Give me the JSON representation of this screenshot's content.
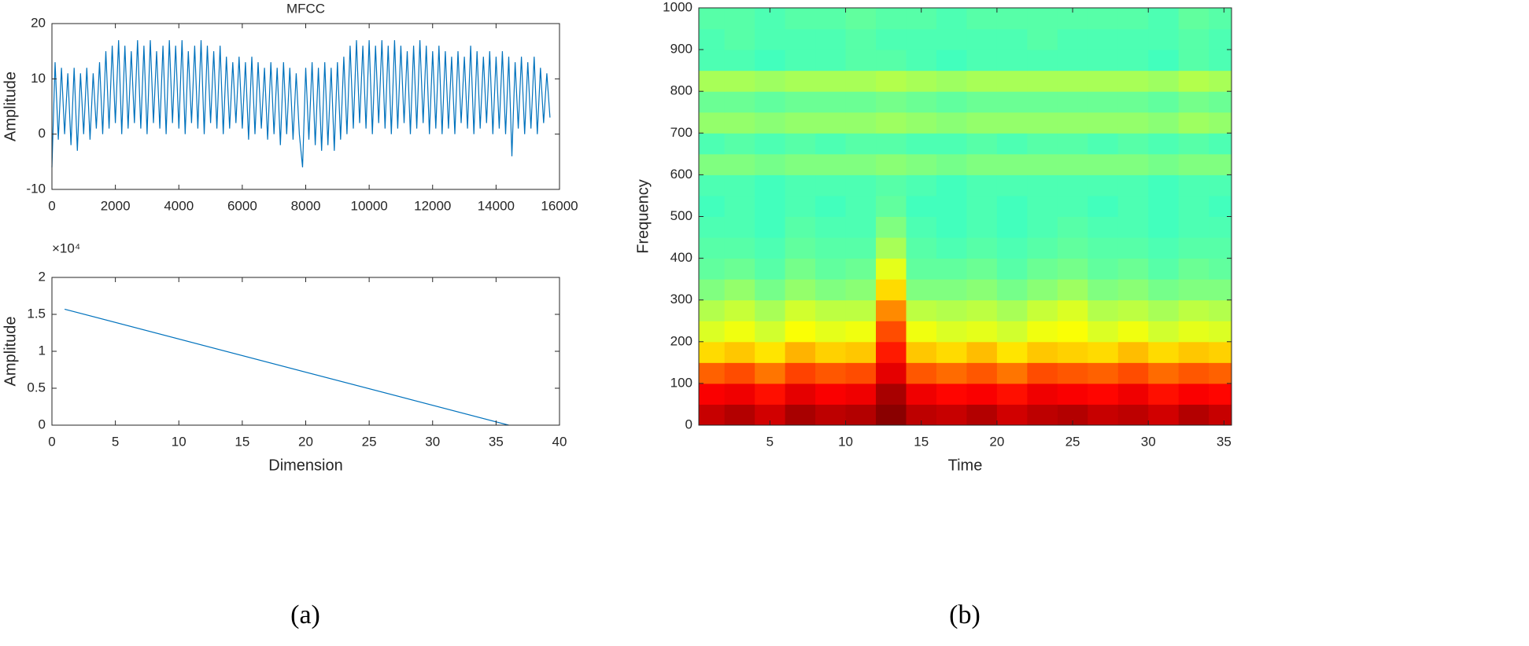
{
  "chart_data": [
    {
      "type": "line",
      "title": "MFCC",
      "y_label": "Amplitude",
      "color": "#0072bd",
      "xlim": [
        0,
        16000
      ],
      "xticks": [
        0,
        2000,
        4000,
        6000,
        8000,
        10000,
        12000,
        14000,
        16000
      ],
      "ylim": [
        -10,
        20
      ],
      "yticks": [
        -10,
        0,
        10,
        20
      ],
      "grid": false,
      "x": [
        0,
        100,
        200,
        300,
        400,
        500,
        600,
        700,
        800,
        900,
        1000,
        1100,
        1200,
        1300,
        1400,
        1500,
        1600,
        1700,
        1800,
        1900,
        2000,
        2100,
        2200,
        2300,
        2400,
        2500,
        2600,
        2700,
        2800,
        2900,
        3000,
        3100,
        3200,
        3300,
        3400,
        3500,
        3600,
        3700,
        3800,
        3900,
        4000,
        4100,
        4200,
        4300,
        4400,
        4500,
        4600,
        4700,
        4800,
        4900,
        5000,
        5100,
        5200,
        5300,
        5400,
        5500,
        5600,
        5700,
        5800,
        5900,
        6000,
        6100,
        6200,
        6300,
        6400,
        6500,
        6600,
        6700,
        6800,
        6900,
        7000,
        7100,
        7200,
        7300,
        7400,
        7500,
        7600,
        7700,
        7800,
        7900,
        8000,
        8100,
        8200,
        8300,
        8400,
        8500,
        8600,
        8700,
        8800,
        8900,
        9000,
        9100,
        9200,
        9300,
        9400,
        9500,
        9600,
        9700,
        9800,
        9900,
        10000,
        10100,
        10200,
        10300,
        10400,
        10500,
        10600,
        10700,
        10800,
        10900,
        11000,
        11100,
        11200,
        11300,
        11400,
        11500,
        11600,
        11700,
        11800,
        11900,
        12000,
        12100,
        12200,
        12300,
        12400,
        12500,
        12600,
        12700,
        12800,
        12900,
        13000,
        13100,
        13200,
        13300,
        13400,
        13500,
        13600,
        13700,
        13800,
        13900,
        14000,
        14100,
        14200,
        14300,
        14400,
        14500,
        14600,
        14700,
        14800,
        14900,
        15000,
        15100,
        15200,
        15300,
        15400,
        15500,
        15600,
        15700
      ],
      "values": [
        -6,
        13,
        -1,
        12,
        0,
        11,
        -2,
        12,
        -3,
        11,
        0,
        12,
        -1,
        11,
        1,
        13,
        0,
        15,
        1,
        16,
        2,
        17,
        0,
        16,
        1,
        15,
        2,
        17,
        1,
        16,
        0,
        17,
        2,
        15,
        1,
        16,
        0,
        17,
        2,
        16,
        1,
        17,
        0,
        15,
        2,
        16,
        1,
        17,
        0,
        16,
        2,
        15,
        1,
        16,
        0,
        14,
        1,
        13,
        2,
        14,
        1,
        13,
        -1,
        14,
        0,
        13,
        1,
        12,
        -1,
        13,
        0,
        12,
        -2,
        13,
        0,
        12,
        -1,
        11,
        0,
        -6,
        12,
        -1,
        13,
        -2,
        12,
        -3,
        13,
        -2,
        12,
        -3,
        13,
        -1,
        14,
        0,
        16,
        1,
        17,
        2,
        16,
        1,
        17,
        0,
        16,
        2,
        17,
        1,
        16,
        0,
        17,
        1,
        16,
        2,
        15,
        0,
        16,
        1,
        17,
        2,
        16,
        0,
        15,
        1,
        16,
        0,
        15,
        1,
        14,
        0,
        15,
        2,
        14,
        1,
        16,
        0,
        15,
        1,
        14,
        2,
        15,
        0,
        14,
        1,
        15,
        0,
        14,
        -4,
        13,
        1,
        14,
        0,
        13,
        1,
        14,
        0,
        12,
        2,
        11,
        3
      ]
    },
    {
      "type": "line",
      "x_label": "Dimension",
      "y_label": "Amplitude",
      "y_exponent": "×10⁴",
      "color": "#0072bd",
      "xlim": [
        0,
        40
      ],
      "xticks": [
        0,
        5,
        10,
        15,
        20,
        25,
        30,
        35,
        40
      ],
      "ylim": [
        0,
        20000
      ],
      "yticks": [
        0,
        {
          "value": 5000,
          "label": "0.5"
        },
        {
          "value": 10000,
          "label": "1"
        },
        {
          "value": 15000,
          "label": "1.5"
        },
        {
          "value": 20000,
          "label": "2"
        }
      ],
      "grid": false,
      "x": [
        1,
        36
      ],
      "values": [
        15700,
        0
      ]
    },
    {
      "type": "heatmap",
      "x_label": "Time",
      "y_label": "Frequency",
      "colormap": "jet",
      "zlim": [
        0,
        10
      ],
      "xlim": [
        0.3,
        35.5
      ],
      "xticks": [
        5,
        10,
        15,
        20,
        25,
        30,
        35
      ],
      "ylim": [
        0,
        1000
      ],
      "yticks": [
        0,
        100,
        200,
        300,
        400,
        500,
        600,
        700,
        800,
        900,
        1000
      ],
      "x": [
        1,
        3,
        5,
        7,
        9,
        11,
        13,
        15,
        17,
        19,
        21,
        23,
        25,
        27,
        29,
        31,
        33,
        35
      ],
      "y": [
        25,
        75,
        125,
        175,
        225,
        275,
        325,
        375,
        425,
        475,
        525,
        575,
        625,
        675,
        725,
        775,
        825,
        875,
        925,
        975
      ],
      "values": [
        [
          9.3,
          9.5,
          9.2,
          9.6,
          9.4,
          9.5,
          9.9,
          9.4,
          9.3,
          9.5,
          9.2,
          9.4,
          9.5,
          9.3,
          9.4,
          9.2,
          9.5,
          9.3
        ],
        [
          8.8,
          8.9,
          8.6,
          9.0,
          8.8,
          8.9,
          9.6,
          8.9,
          8.7,
          8.8,
          8.6,
          8.9,
          8.8,
          8.7,
          8.9,
          8.6,
          8.8,
          8.7
        ],
        [
          7.8,
          8.0,
          7.6,
          8.1,
          7.9,
          8.0,
          9.0,
          7.9,
          7.7,
          7.9,
          7.6,
          8.0,
          7.9,
          7.8,
          8.0,
          7.7,
          7.9,
          7.8
        ],
        [
          6.6,
          6.8,
          6.5,
          7.0,
          6.7,
          6.8,
          8.5,
          6.8,
          6.6,
          6.9,
          6.5,
          6.8,
          6.7,
          6.6,
          6.9,
          6.6,
          6.8,
          6.7
        ],
        [
          5.9,
          6.1,
          5.8,
          6.2,
          6.0,
          6.1,
          8.0,
          6.1,
          5.9,
          6.0,
          5.8,
          6.1,
          6.2,
          5.9,
          6.1,
          5.8,
          6.0,
          5.9
        ],
        [
          5.5,
          5.7,
          5.4,
          5.8,
          5.6,
          5.6,
          7.4,
          5.6,
          5.5,
          5.6,
          5.4,
          5.7,
          5.9,
          5.5,
          5.6,
          5.4,
          5.6,
          5.5
        ],
        [
          5.0,
          5.2,
          4.9,
          5.2,
          5.0,
          5.1,
          6.6,
          5.0,
          5.0,
          5.1,
          4.9,
          5.1,
          5.3,
          5.0,
          5.1,
          4.9,
          5.0,
          5.0
        ],
        [
          4.7,
          4.8,
          4.6,
          4.9,
          4.7,
          4.8,
          6.0,
          4.7,
          4.7,
          4.8,
          4.6,
          4.8,
          4.9,
          4.7,
          4.8,
          4.6,
          4.8,
          4.7
        ],
        [
          4.6,
          4.6,
          4.5,
          4.7,
          4.6,
          4.6,
          5.4,
          4.6,
          4.5,
          4.6,
          4.5,
          4.6,
          4.7,
          4.6,
          4.6,
          4.5,
          4.6,
          4.6
        ],
        [
          4.5,
          4.5,
          4.4,
          4.6,
          4.5,
          4.5,
          5.0,
          4.5,
          4.4,
          4.5,
          4.4,
          4.5,
          4.6,
          4.5,
          4.5,
          4.4,
          4.5,
          4.5
        ],
        [
          4.4,
          4.5,
          4.4,
          4.5,
          4.4,
          4.5,
          4.7,
          4.4,
          4.4,
          4.5,
          4.4,
          4.5,
          4.5,
          4.4,
          4.5,
          4.4,
          4.5,
          4.4
        ],
        [
          4.5,
          4.5,
          4.4,
          4.5,
          4.5,
          4.5,
          4.6,
          4.5,
          4.4,
          4.5,
          4.5,
          4.5,
          4.5,
          4.5,
          4.5,
          4.4,
          4.5,
          4.5
        ],
        [
          5.0,
          5.0,
          4.9,
          5.0,
          5.0,
          5.0,
          5.1,
          5.0,
          4.9,
          5.0,
          5.0,
          5.0,
          5.0,
          5.0,
          5.0,
          4.9,
          5.0,
          5.0
        ],
        [
          4.5,
          4.6,
          4.5,
          4.6,
          4.5,
          4.6,
          4.6,
          4.5,
          4.5,
          4.6,
          4.5,
          4.6,
          4.6,
          4.5,
          4.6,
          4.5,
          4.6,
          4.5
        ],
        [
          5.2,
          5.2,
          5.1,
          5.2,
          5.2,
          5.2,
          5.3,
          5.2,
          5.1,
          5.2,
          5.2,
          5.2,
          5.2,
          5.2,
          5.2,
          5.1,
          5.3,
          5.2
        ],
        [
          4.8,
          4.8,
          4.7,
          4.8,
          4.8,
          4.8,
          4.9,
          4.8,
          4.7,
          4.8,
          4.8,
          4.8,
          4.8,
          4.8,
          4.8,
          4.7,
          4.9,
          4.8
        ],
        [
          5.4,
          5.4,
          5.3,
          5.4,
          5.4,
          5.4,
          5.5,
          5.4,
          5.3,
          5.4,
          5.4,
          5.4,
          5.4,
          5.4,
          5.4,
          5.3,
          5.5,
          5.4
        ],
        [
          4.5,
          4.5,
          4.4,
          4.5,
          4.5,
          4.6,
          4.6,
          4.5,
          4.4,
          4.5,
          4.5,
          4.5,
          4.5,
          4.5,
          4.5,
          4.4,
          4.6,
          4.5
        ],
        [
          4.5,
          4.6,
          4.5,
          4.5,
          4.5,
          4.6,
          4.5,
          4.5,
          4.5,
          4.5,
          4.5,
          4.6,
          4.5,
          4.5,
          4.5,
          4.5,
          4.6,
          4.5
        ],
        [
          4.6,
          4.6,
          4.5,
          4.6,
          4.6,
          4.7,
          4.6,
          4.6,
          4.5,
          4.6,
          4.6,
          4.6,
          4.6,
          4.6,
          4.6,
          4.5,
          4.7,
          4.6
        ]
      ]
    }
  ],
  "panel_labels": [
    "(a)",
    "(b)"
  ]
}
